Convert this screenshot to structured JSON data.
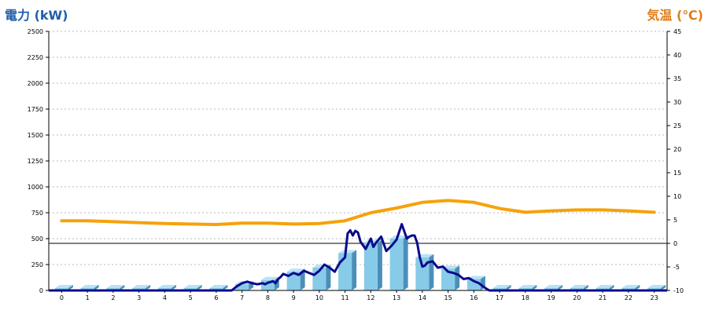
{
  "chart_data": {
    "type": "bar",
    "ylabel": "電力 (kW)",
    "y2label": "気温 (℃)",
    "ylim": [
      0,
      2500
    ],
    "y2lim": [
      -10,
      45
    ],
    "y_ticks": [
      "0",
      "250",
      "500",
      "750",
      "1000",
      "1250",
      "1500",
      "1750",
      "2000",
      "2250",
      "2500"
    ],
    "y2_ticks": [
      "-10",
      "-5",
      "0",
      "5",
      "10",
      "15",
      "20",
      "25",
      "30",
      "35",
      "40",
      "45"
    ],
    "grid": true,
    "categories": [
      "0",
      "1",
      "2",
      "3",
      "4",
      "5",
      "6",
      "7",
      "8",
      "9",
      "10",
      "11",
      "12",
      "13",
      "14",
      "15",
      "16",
      "17",
      "18",
      "19",
      "20",
      "21",
      "22",
      "23"
    ],
    "series": [
      {
        "kind": "bar",
        "color": "#87cbe8",
        "values": [
          0,
          0,
          0,
          0,
          0,
          0,
          0,
          60,
          100,
          180,
          220,
          360,
          460,
          500,
          320,
          210,
          110,
          0,
          0,
          0,
          0,
          0,
          0,
          0
        ]
      },
      {
        "kind": "line",
        "axis": "left",
        "color": "#0a0a8c",
        "x": [
          6.6,
          6.8,
          7.0,
          7.2,
          7.4,
          7.6,
          7.8,
          7.9,
          8.0,
          8.1,
          8.2,
          8.3,
          8.4,
          8.5,
          8.6,
          8.8,
          9.0,
          9.2,
          9.4,
          9.6,
          9.8,
          10.0,
          10.2,
          10.4,
          10.6,
          10.8,
          11.0,
          11.1,
          11.2,
          11.3,
          11.4,
          11.5,
          11.6,
          11.8,
          12.0,
          12.1,
          12.2,
          12.4,
          12.6,
          12.8,
          13.0,
          13.2,
          13.4,
          13.5,
          13.6,
          13.7,
          13.8,
          13.9,
          14.0,
          14.1,
          14.2,
          14.4,
          14.6,
          14.8,
          15.0,
          15.2,
          15.4,
          15.6,
          15.8,
          16.0,
          16.2,
          16.4,
          16.6
        ],
        "values": [
          0,
          40,
          70,
          85,
          70,
          60,
          70,
          60,
          75,
          80,
          90,
          70,
          110,
          130,
          160,
          140,
          170,
          150,
          190,
          170,
          150,
          190,
          250,
          220,
          180,
          270,
          320,
          550,
          580,
          530,
          575,
          560,
          470,
          400,
          500,
          420,
          460,
          520,
          380,
          430,
          490,
          640,
          500,
          520,
          530,
          530,
          460,
          320,
          230,
          240,
          270,
          280,
          220,
          230,
          180,
          170,
          150,
          110,
          120,
          90,
          70,
          30,
          0
        ]
      },
      {
        "kind": "line",
        "axis": "right",
        "color": "#f5a20a",
        "x": [
          0,
          1,
          2,
          3,
          4,
          5,
          6,
          7,
          8,
          9,
          10,
          11,
          12,
          13,
          14,
          15,
          16,
          17,
          18,
          19,
          20,
          21,
          22,
          23
        ],
        "values": [
          4.8,
          4.8,
          4.6,
          4.4,
          4.2,
          4.1,
          4.0,
          4.3,
          4.3,
          4.1,
          4.2,
          4.8,
          6.5,
          7.5,
          8.7,
          9.1,
          8.7,
          7.4,
          6.6,
          6.9,
          7.1,
          7.1,
          6.9,
          6.6
        ]
      }
    ]
  }
}
